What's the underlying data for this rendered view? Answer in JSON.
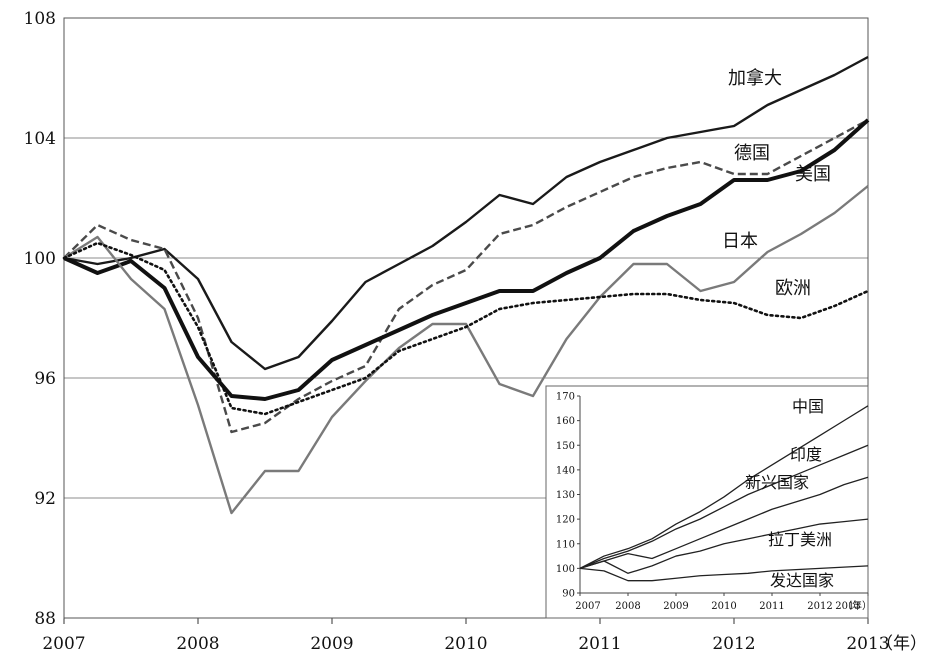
{
  "chart_data": [
    {
      "type": "line",
      "title": "",
      "xlabel": "（年）",
      "ylabel": "",
      "xlim": [
        2007,
        2013
      ],
      "ylim": [
        88,
        108
      ],
      "yticks": [
        88,
        92,
        96,
        100,
        104,
        108
      ],
      "xticks": [
        2007,
        2008,
        2009,
        2010,
        2011,
        2012,
        2013
      ],
      "grid": true,
      "series": [
        {
          "name": "加拿大",
          "label": "加拿大",
          "style": "solid",
          "color": "#1a1a1a",
          "x": [
            2007,
            2007.25,
            2007.5,
            2007.75,
            2008,
            2008.25,
            2008.5,
            2008.75,
            2009,
            2009.25,
            2009.5,
            2009.75,
            2010,
            2010.25,
            2010.5,
            2010.75,
            2011,
            2011.25,
            2011.5,
            2011.75,
            2012,
            2012.25,
            2012.5,
            2012.75,
            2013
          ],
          "values": [
            100,
            99.8,
            100.0,
            100.3,
            99.3,
            97.2,
            96.3,
            96.7,
            97.9,
            99.2,
            99.8,
            100.4,
            101.2,
            102.1,
            101.8,
            102.7,
            103.2,
            103.6,
            104.0,
            104.2,
            104.4,
            105.1,
            105.6,
            106.1,
            106.7
          ]
        },
        {
          "name": "德国",
          "label": "德国",
          "style": "dashed",
          "color": "#4a4a4a",
          "x": [
            2007,
            2007.25,
            2007.5,
            2007.75,
            2008,
            2008.25,
            2008.5,
            2008.75,
            2009,
            2009.25,
            2009.5,
            2009.75,
            2010,
            2010.25,
            2010.5,
            2010.75,
            2011,
            2011.25,
            2011.5,
            2011.75,
            2012,
            2012.25,
            2012.5,
            2012.75,
            2013
          ],
          "values": [
            100,
            101.1,
            100.6,
            100.3,
            98.0,
            94.2,
            94.5,
            95.3,
            95.9,
            96.4,
            98.3,
            99.1,
            99.6,
            100.8,
            101.1,
            101.7,
            102.2,
            102.7,
            103.0,
            103.2,
            102.8,
            102.8,
            103.4,
            104.0,
            104.6
          ]
        },
        {
          "name": "美国",
          "label": "美国",
          "style": "bold",
          "color": "#111111",
          "x": [
            2007,
            2007.25,
            2007.5,
            2007.75,
            2008,
            2008.25,
            2008.5,
            2008.75,
            2009,
            2009.25,
            2009.5,
            2009.75,
            2010,
            2010.25,
            2010.5,
            2010.75,
            2011,
            2011.25,
            2011.5,
            2011.75,
            2012,
            2012.25,
            2012.5,
            2012.75,
            2013
          ],
          "values": [
            100,
            99.5,
            99.9,
            99.0,
            96.7,
            95.4,
            95.3,
            95.6,
            96.6,
            97.1,
            97.6,
            98.1,
            98.5,
            98.9,
            98.9,
            99.5,
            100.0,
            100.9,
            101.4,
            101.8,
            102.6,
            102.6,
            102.9,
            103.6,
            104.6
          ]
        },
        {
          "name": "日本",
          "label": "日本",
          "style": "solid",
          "color": "#7a7a7a",
          "x": [
            2007,
            2007.25,
            2007.5,
            2007.75,
            2008,
            2008.25,
            2008.5,
            2008.75,
            2009,
            2009.25,
            2009.5,
            2009.75,
            2010,
            2010.25,
            2010.5,
            2010.75,
            2011,
            2011.25,
            2011.5,
            2011.75,
            2012,
            2012.25,
            2012.5,
            2012.75,
            2013
          ],
          "values": [
            100,
            100.7,
            99.3,
            98.3,
            95.1,
            91.5,
            92.9,
            92.9,
            94.7,
            95.9,
            97.0,
            97.8,
            97.8,
            95.8,
            95.4,
            97.3,
            98.7,
            99.8,
            99.8,
            98.9,
            99.2,
            100.2,
            100.8,
            101.5,
            102.4
          ]
        },
        {
          "name": "欧洲",
          "label": "欧洲",
          "style": "dotted",
          "color": "#111111",
          "x": [
            2007,
            2007.25,
            2007.5,
            2007.75,
            2008,
            2008.25,
            2008.5,
            2008.75,
            2009,
            2009.25,
            2009.5,
            2009.75,
            2010,
            2010.25,
            2010.5,
            2010.75,
            2011,
            2011.25,
            2011.5,
            2011.75,
            2012,
            2012.25,
            2012.5,
            2012.75,
            2013
          ],
          "values": [
            100,
            100.5,
            100.1,
            99.6,
            97.7,
            95.0,
            94.8,
            95.2,
            95.6,
            96.0,
            96.9,
            97.3,
            97.7,
            98.3,
            98.5,
            98.6,
            98.7,
            98.8,
            98.8,
            98.6,
            98.5,
            98.1,
            98.0,
            98.4,
            98.9
          ]
        }
      ]
    },
    {
      "type": "line",
      "title": "",
      "xlabel": "（年）",
      "ylabel": "",
      "xlim": [
        2007,
        2013
      ],
      "ylim": [
        90,
        170
      ],
      "yticks": [
        90,
        100,
        110,
        120,
        130,
        140,
        150,
        160,
        170
      ],
      "xticks": [
        2007,
        2008,
        2009,
        2010,
        2011,
        2012,
        2013
      ],
      "grid": false,
      "series": [
        {
          "name": "中国",
          "label": "中国",
          "x": [
            2007,
            2007.5,
            2008,
            2008.5,
            2009,
            2009.5,
            2010,
            2010.5,
            2011,
            2011.5,
            2012,
            2012.5,
            2013
          ],
          "values": [
            100,
            105,
            108,
            112,
            118,
            123,
            129,
            136,
            142,
            148,
            154,
            160,
            166
          ]
        },
        {
          "name": "印度",
          "label": "印度",
          "x": [
            2007,
            2007.5,
            2008,
            2008.5,
            2009,
            2009.5,
            2010,
            2010.5,
            2011,
            2011.5,
            2012,
            2012.5,
            2013
          ],
          "values": [
            100,
            104,
            107,
            111,
            116,
            120,
            125,
            130,
            134,
            138,
            142,
            146,
            150
          ]
        },
        {
          "name": "新兴国家",
          "label": "新兴国家",
          "x": [
            2007,
            2007.5,
            2008,
            2008.5,
            2009,
            2009.5,
            2010,
            2010.5,
            2011,
            2011.5,
            2012,
            2012.5,
            2013
          ],
          "values": [
            100,
            103,
            106,
            104,
            108,
            112,
            116,
            120,
            124,
            127,
            130,
            134,
            137
          ]
        },
        {
          "name": "拉丁美洲",
          "label": "拉丁美洲",
          "x": [
            2007,
            2007.5,
            2008,
            2008.5,
            2009,
            2009.5,
            2010,
            2010.5,
            2011,
            2011.5,
            2012,
            2012.5,
            2013
          ],
          "values": [
            100,
            103,
            98,
            101,
            105,
            107,
            110,
            112,
            114,
            116,
            118,
            119,
            120
          ]
        },
        {
          "name": "发达国家",
          "label": "发达国家",
          "x": [
            2007,
            2007.5,
            2008,
            2008.5,
            2009,
            2009.5,
            2010,
            2010.5,
            2011,
            2011.5,
            2012,
            2012.5,
            2013
          ],
          "values": [
            100,
            99,
            95,
            95,
            96,
            97,
            97.5,
            98,
            99,
            99.5,
            100,
            100.5,
            101
          ]
        }
      ]
    }
  ]
}
